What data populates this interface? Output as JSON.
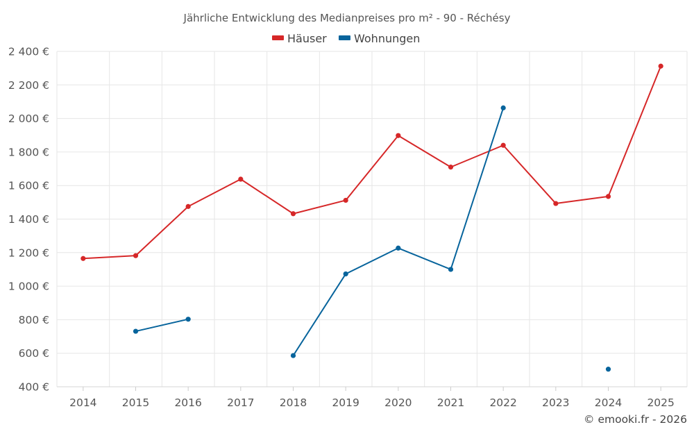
{
  "chart_data": {
    "type": "line",
    "title": "Jährliche Entwicklung des Medianpreises pro m² - 90 - Réchésy",
    "categories": [
      "2014",
      "2015",
      "2016",
      "2017",
      "2018",
      "2019",
      "2020",
      "2021",
      "2022",
      "2023",
      "2024",
      "2025"
    ],
    "y_ticks": [
      400,
      600,
      800,
      1000,
      1200,
      1400,
      1600,
      1800,
      2000,
      2200,
      2400
    ],
    "y_tick_labels": [
      "400 €",
      "600 €",
      "800 €",
      "1 000 €",
      "1 200 €",
      "1 400 €",
      "1 600 €",
      "1 800 €",
      "2 000 €",
      "2 200 €",
      "2 400 €"
    ],
    "ylim": [
      400,
      2400
    ],
    "xlabel": "",
    "ylabel": "",
    "grid": true,
    "legend_position": "top-center",
    "series": [
      {
        "name": "Häuser",
        "color": "#d62728",
        "values": [
          1165,
          1182,
          1475,
          1638,
          1432,
          1512,
          1898,
          1710,
          1840,
          1493,
          1535,
          2312
        ]
      },
      {
        "name": "Wohnungen",
        "color": "#07649c",
        "values": [
          null,
          731,
          803,
          null,
          586,
          1073,
          1227,
          1100,
          2063,
          null,
          505,
          null
        ]
      }
    ],
    "credit": "© emooki.fr - 2026"
  }
}
